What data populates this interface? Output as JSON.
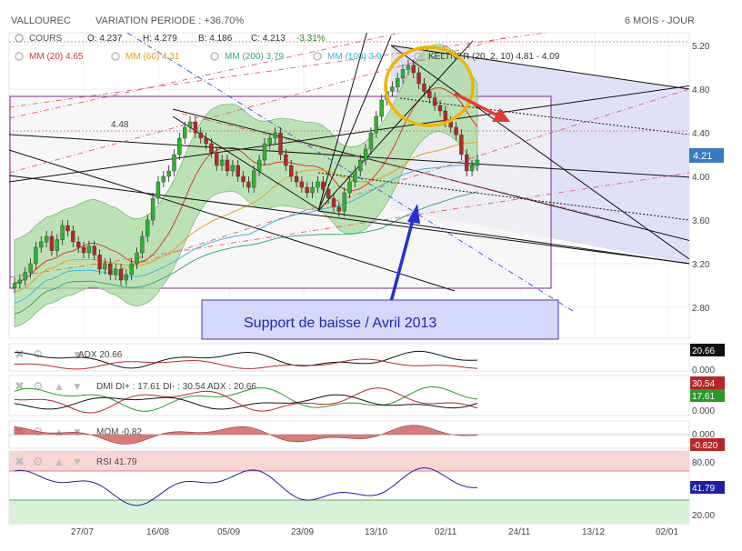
{
  "header": {
    "ticker": "VALLOUREC",
    "variation": "VARIATION PERIODE : +36.70%",
    "period": "6 MOIS - JOUR"
  },
  "ohlc": {
    "label": "COURS",
    "open": "O: 4.237",
    "high": "H: 4.279",
    "low": "B: 4.186",
    "close": "C: 4.213",
    "change": "-3.31%"
  },
  "legend": {
    "mm20": "MM (20) 4.65",
    "mm60": "MM (60) 4.31",
    "mm200": "MM (200) 3.79",
    "mm100": "MM (100) 3.9",
    "keltner": "KELTNER (20, 2, 10) 4.81 - 4.09"
  },
  "level_label": "4.48",
  "annotation": "Support de baisse / Avril 2013",
  "price_axis": [
    "5.20",
    "4.80",
    "4.40",
    "4.00",
    "3.60",
    "3.20",
    "2.80"
  ],
  "last_price": "4.21",
  "date_axis": [
    "27/07",
    "16/08",
    "05/09",
    "23/09",
    "13/10",
    "02/11",
    "24/11",
    "13/12",
    "02/01"
  ],
  "indicators": {
    "adx": {
      "label": "ADX 20.66",
      "value": "20.66",
      "zero": "0.000"
    },
    "dmi": {
      "label": "DMI DI+ : 17.61 DI- : 30.54 ADX : 20.66",
      "di_minus": "30.54",
      "di_plus": "17.61",
      "zero": "0.000"
    },
    "mom": {
      "label": "MOM -0.82",
      "zero": "0.000",
      "value": "-0.820"
    },
    "rsi": {
      "label": "RSI 41.79",
      "upper": "80.00",
      "value": "41.79",
      "lower": "20.00"
    }
  },
  "colors": {
    "up": "#2db32d",
    "down": "#b52828",
    "keltner_fill": "#a9d9a0",
    "channel_fill": "#dcdcf5",
    "box": "#7a2a8a",
    "annotation_fill": "#d6d8fb",
    "arrow_blue": "#2430d0",
    "arrow_red": "#e43c34",
    "circle": "#f2b400"
  }
}
